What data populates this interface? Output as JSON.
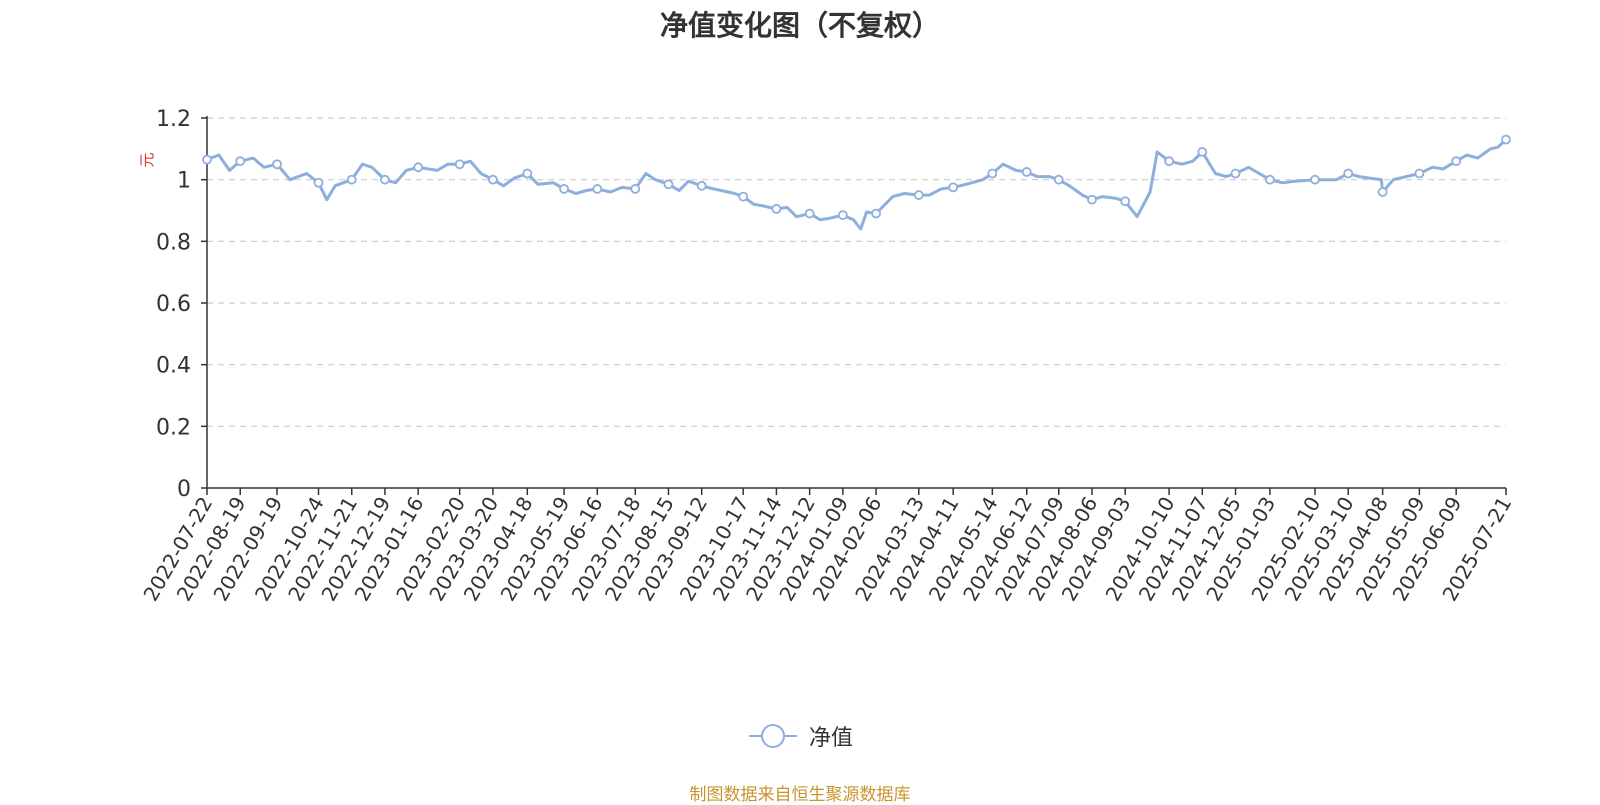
{
  "source_note": "制图数据来自恒生聚源数据库",
  "colors": {
    "line": "#8eaede",
    "unit": "#e03030",
    "grid": "#cccccc",
    "axis": "#333333",
    "source": "#c8952c"
  },
  "chart_data": {
    "type": "line",
    "title": "净值变化图（不复权）",
    "ylabel": "元",
    "xlabel": "",
    "ylim": [
      0,
      1.2
    ],
    "yticks": [
      "0",
      "0.2",
      "0.4",
      "0.6",
      "0.8",
      "1",
      "1.2"
    ],
    "grid": true,
    "legend_position": "bottom-center",
    "x_ticks": [
      "2022-07-22",
      "2022-08-19",
      "2022-09-19",
      "2022-10-24",
      "2022-11-21",
      "2022-12-19",
      "2023-01-16",
      "2023-02-20",
      "2023-03-20",
      "2023-04-18",
      "2023-05-19",
      "2023-06-16",
      "2023-07-18",
      "2023-08-15",
      "2023-09-12",
      "2023-10-17",
      "2023-11-14",
      "2023-12-12",
      "2024-01-09",
      "2024-02-06",
      "2024-03-13",
      "2024-04-11",
      "2024-05-14",
      "2024-06-12",
      "2024-07-09",
      "2024-08-06",
      "2024-09-03",
      "2024-10-10",
      "2024-11-07",
      "2024-12-05",
      "2025-01-03",
      "2025-02-10",
      "2025-03-10",
      "2025-04-08",
      "2025-05-09",
      "2025-06-09",
      "2025-07-21"
    ],
    "series": [
      {
        "name": "净值",
        "x": [
          "2022-07-22",
          "2022-08-01",
          "2022-08-10",
          "2022-08-19",
          "2022-08-30",
          "2022-09-08",
          "2022-09-19",
          "2022-09-30",
          "2022-10-14",
          "2022-10-24",
          "2022-10-31",
          "2022-11-07",
          "2022-11-21",
          "2022-11-30",
          "2022-12-08",
          "2022-12-19",
          "2022-12-28",
          "2023-01-06",
          "2023-01-16",
          "2023-02-01",
          "2023-02-10",
          "2023-02-20",
          "2023-03-01",
          "2023-03-10",
          "2023-03-20",
          "2023-03-29",
          "2023-04-07",
          "2023-04-18",
          "2023-04-27",
          "2023-05-10",
          "2023-05-19",
          "2023-05-29",
          "2023-06-07",
          "2023-06-16",
          "2023-06-27",
          "2023-07-07",
          "2023-07-18",
          "2023-07-27",
          "2023-08-04",
          "2023-08-15",
          "2023-08-24",
          "2023-09-01",
          "2023-09-12",
          "2023-09-22",
          "2023-10-10",
          "2023-10-17",
          "2023-10-26",
          "2023-11-03",
          "2023-11-14",
          "2023-11-23",
          "2023-12-01",
          "2023-12-12",
          "2023-12-21",
          "2023-12-29",
          "2024-01-09",
          "2024-01-18",
          "2024-01-24",
          "2024-01-29",
          "2024-02-06",
          "2024-02-20",
          "2024-03-01",
          "2024-03-13",
          "2024-03-22",
          "2024-04-01",
          "2024-04-11",
          "2024-04-22",
          "2024-05-06",
          "2024-05-14",
          "2024-05-23",
          "2024-06-03",
          "2024-06-12",
          "2024-06-21",
          "2024-07-01",
          "2024-07-09",
          "2024-07-18",
          "2024-07-29",
          "2024-08-06",
          "2024-08-15",
          "2024-08-26",
          "2024-09-03",
          "2024-09-13",
          "2024-09-24",
          "2024-09-30",
          "2024-10-10",
          "2024-10-21",
          "2024-10-30",
          "2024-11-07",
          "2024-11-18",
          "2024-11-27",
          "2024-12-05",
          "2024-12-16",
          "2024-12-25",
          "2025-01-03",
          "2025-01-14",
          "2025-01-24",
          "2025-02-10",
          "2025-02-20",
          "2025-02-28",
          "2025-03-10",
          "2025-03-19",
          "2025-03-28",
          "2025-04-07",
          "2025-04-08",
          "2025-04-17",
          "2025-04-28",
          "2025-05-09",
          "2025-05-20",
          "2025-05-29",
          "2025-06-09",
          "2025-06-18",
          "2025-06-27",
          "2025-07-08",
          "2025-07-14",
          "2025-07-21"
        ],
        "values": [
          1.065,
          1.08,
          1.03,
          1.06,
          1.07,
          1.04,
          1.05,
          1.0,
          1.02,
          0.99,
          0.935,
          0.98,
          1.0,
          1.05,
          1.04,
          1.0,
          0.99,
          1.03,
          1.04,
          1.03,
          1.05,
          1.05,
          1.06,
          1.02,
          1.0,
          0.98,
          1.005,
          1.02,
          0.985,
          0.99,
          0.97,
          0.955,
          0.965,
          0.97,
          0.96,
          0.975,
          0.97,
          1.02,
          1.0,
          0.985,
          0.965,
          0.995,
          0.98,
          0.97,
          0.955,
          0.945,
          0.92,
          0.915,
          0.905,
          0.91,
          0.88,
          0.89,
          0.87,
          0.875,
          0.885,
          0.87,
          0.84,
          0.895,
          0.89,
          0.945,
          0.955,
          0.95,
          0.95,
          0.97,
          0.975,
          0.985,
          1.0,
          1.02,
          1.05,
          1.03,
          1.025,
          1.01,
          1.01,
          1.0,
          0.98,
          0.95,
          0.935,
          0.945,
          0.94,
          0.93,
          0.88,
          0.96,
          1.09,
          1.06,
          1.05,
          1.06,
          1.09,
          1.02,
          1.01,
          1.02,
          1.04,
          1.02,
          1.0,
          0.99,
          0.995,
          1.0,
          1.0,
          1.0,
          1.02,
          1.01,
          1.005,
          1.0,
          0.96,
          1.0,
          1.01,
          1.02,
          1.04,
          1.035,
          1.06,
          1.08,
          1.07,
          1.1,
          1.105,
          1.13
        ]
      }
    ]
  }
}
